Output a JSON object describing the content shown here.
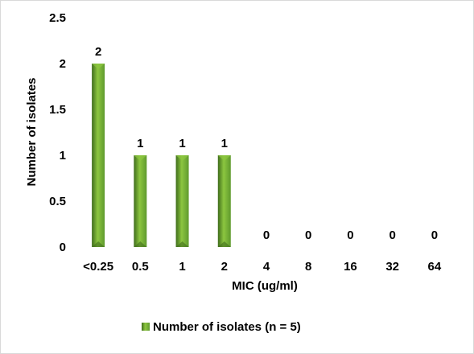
{
  "chart_data": {
    "type": "bar",
    "categories": [
      "<0.25",
      "0.5",
      "1",
      "2",
      "4",
      "8",
      "16",
      "32",
      "64"
    ],
    "series": [
      {
        "name": "Number of isolates (n = 5)",
        "values": [
          2,
          1,
          1,
          1,
          0,
          0,
          0,
          0,
          0
        ]
      }
    ],
    "xlabel": "MIC (ug/ml)",
    "ylabel": "Number of isolates",
    "ylim": [
      0,
      2.5
    ],
    "yticks": [
      "0",
      "0.5",
      "1",
      "1.5",
      "2",
      "2.5"
    ],
    "data_labels": [
      "2",
      "1",
      "1",
      "1",
      "0",
      "0",
      "0",
      "0",
      "0"
    ],
    "legend_position": "bottom",
    "grid": false,
    "bar_color": "#5f9a2e",
    "bar_highlight": "#8cc63f",
    "bar_shadow": "#3f6d1c"
  }
}
